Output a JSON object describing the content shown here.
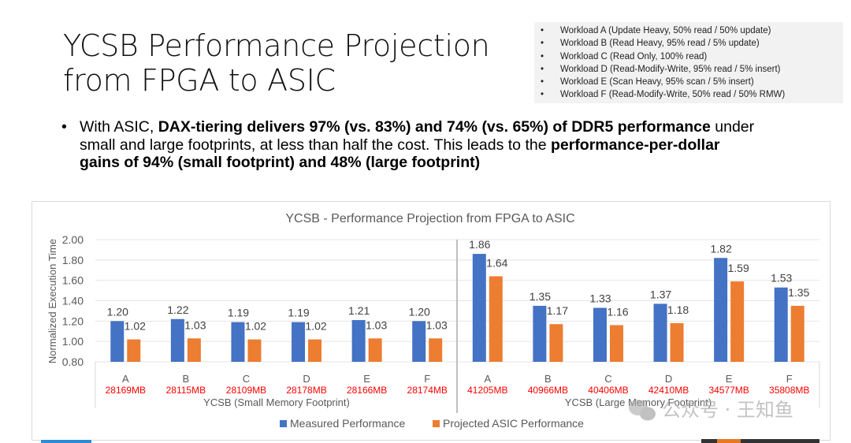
{
  "slide": {
    "title_line1": "YCSB Performance Projection",
    "title_line2": "from FPGA to ASIC",
    "workloads": [
      "Workload A (Update Heavy, 50% read / 50% update)",
      "Workload B (Read Heavy, 95% read / 5% update)",
      "Workload C (Read Only, 100% read)",
      "Workload D (Read-Modify-Write, 95% read / 5% insert)",
      "Workload E (Scan Heavy, 95% scan / 5% insert)",
      "Workload F (Read-Modify-Write, 50% read / 50% RMW)"
    ],
    "summary": {
      "bullet": "•",
      "p1": "With ASIC, ",
      "b1": "DAX-tiering delivers 97% (vs. 83%) and 74% (vs. 65%) of DDR5 performance",
      "p2": " under small and large footprints, at less than half the cost. This leads to the ",
      "b2": "performance-per-dollar gains of 94% (small footprint) and 48% (large footprint)"
    },
    "watermark": "公众号 · 王知鱼"
  },
  "chart_data": {
    "type": "bar",
    "title": "YCSB - Performance Projection from FPGA to ASIC",
    "ylabel": "Normalized Execution Time",
    "ylim": [
      0.8,
      2.0
    ],
    "yticks": [
      "0.80",
      "1.00",
      "1.20",
      "1.40",
      "1.60",
      "1.80",
      "2.00"
    ],
    "grid": true,
    "legend": "bottom",
    "groups": [
      {
        "label": "YCSB (Small Memory Footprint)"
      },
      {
        "label": "YCSB (Large Memory Footprint)"
      }
    ],
    "categories": [
      "A",
      "B",
      "C",
      "D",
      "E",
      "F",
      "A",
      "B",
      "C",
      "D",
      "E",
      "F"
    ],
    "footprints": [
      "28169MB",
      "28115MB",
      "28109MB",
      "28178MB",
      "28166MB",
      "28174MB",
      "41205MB",
      "40966MB",
      "40406MB",
      "42410MB",
      "34577MB",
      "35808MB"
    ],
    "footprint_color": "#ff0000",
    "series": [
      {
        "name": "Measured Performance",
        "color": "#4472c4",
        "values": [
          1.2,
          1.22,
          1.19,
          1.19,
          1.21,
          1.2,
          1.86,
          1.35,
          1.33,
          1.37,
          1.82,
          1.53
        ]
      },
      {
        "name": "Projected ASIC Performance",
        "color": "#ed7d31",
        "values": [
          1.02,
          1.03,
          1.02,
          1.02,
          1.03,
          1.03,
          1.64,
          1.17,
          1.16,
          1.18,
          1.59,
          1.35
        ]
      }
    ]
  }
}
